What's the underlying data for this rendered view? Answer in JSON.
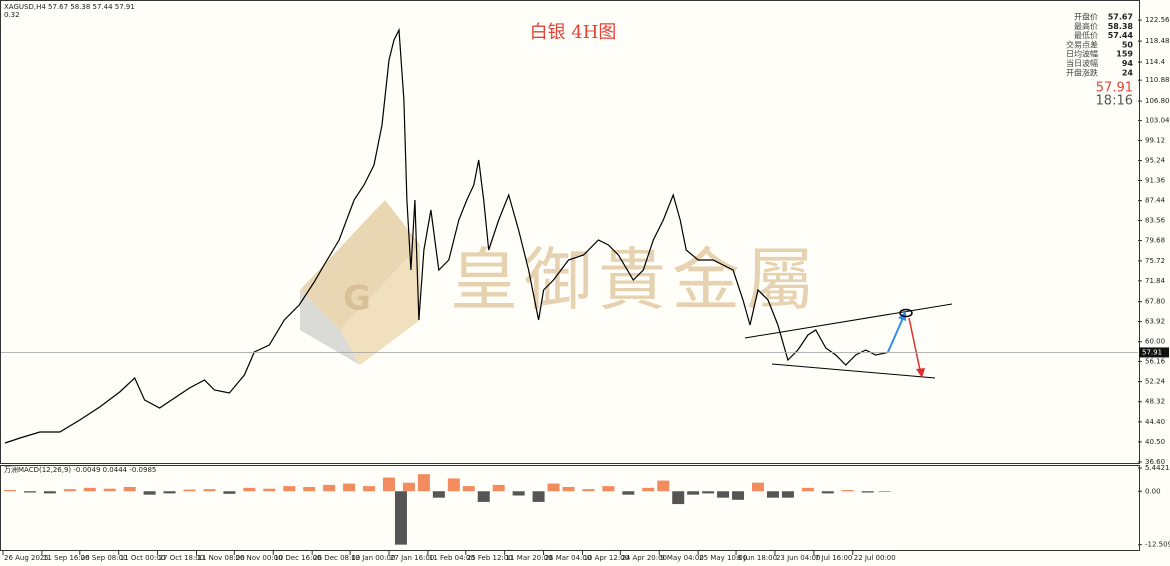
{
  "header": "XAGUSD,H4  57.67 58.38 57.44 57.91",
  "subheader": "0.32",
  "title": "白银 4H图",
  "watermark": "皇御貴金屬",
  "logo_letter": "G",
  "info_panel": {
    "rows": [
      {
        "label": "开盘价",
        "value": 57.67
      },
      {
        "label": "最高价",
        "value": 58.38
      },
      {
        "label": "最低价",
        "value": 57.44
      },
      {
        "label": "交易点差",
        "value": 50
      },
      {
        "label": "日均波幅",
        "value": 159
      },
      {
        "label": "当日波幅",
        "value": 94
      },
      {
        "label": "开盘涨跌",
        "value": 24
      }
    ],
    "price": 57.91,
    "time": "18:16"
  },
  "chart_data": [
    {
      "type": "line",
      "x": [
        2,
        17,
        37,
        57,
        77,
        97,
        117,
        132,
        142,
        157,
        172,
        187,
        202,
        212,
        227,
        242,
        252,
        267,
        282,
        297,
        312,
        322,
        337,
        352,
        362,
        372,
        380,
        387,
        392,
        397,
        402,
        405,
        409,
        413,
        417,
        422,
        429,
        437,
        447,
        457,
        465,
        472,
        477,
        482,
        487,
        497,
        507,
        517,
        527,
        537,
        542,
        552,
        567,
        582,
        597,
        607,
        617,
        632,
        642,
        652,
        662,
        672,
        679,
        685,
        697,
        712,
        722,
        732,
        742,
        749,
        757,
        767,
        777,
        787,
        797,
        807,
        815,
        825,
        835,
        845,
        855,
        865,
        875,
        887
      ],
      "series": [
        {
          "color": "#000000",
          "values": [
            40.29,
            41.26,
            42.43,
            42.43,
            44.77,
            47.29,
            50.21,
            52.94,
            48.66,
            47.1,
            49.05,
            50.99,
            52.55,
            50.6,
            50.02,
            53.52,
            57.99,
            59.36,
            64.22,
            67.14,
            71.61,
            74.92,
            79.78,
            87.56,
            90.48,
            94.37,
            102.16,
            114.8,
            118.69,
            120.64,
            107.02,
            87.56,
            73.95,
            87.56,
            64.22,
            77.84,
            85.62,
            73.95,
            75.89,
            83.67,
            87.56,
            90.48,
            95.35,
            87.56,
            77.84,
            83.67,
            88.54,
            81.73,
            73.95,
            64.22,
            70.06,
            72,
            75.89,
            76.86,
            79.78,
            78.81,
            76.86,
            72,
            73.95,
            79.78,
            83.67,
            88.54,
            83.67,
            77.84,
            75.89,
            75.89,
            74.92,
            73.95,
            68.11,
            63.25,
            70.06,
            68.11,
            63.25,
            56.44,
            58.38,
            61.3,
            62.27,
            58.77,
            57.41,
            55.47,
            57.41,
            58.38,
            57.41,
            57.91
          ]
        }
      ],
      "current_price": 57.91,
      "xlim": [
        0,
        1135
      ],
      "xticks": [
        {
          "value": 0,
          "label": "26 Aug 2025"
        },
        {
          "value": 39,
          "label": "11 Sep 16:00"
        },
        {
          "value": 77,
          "label": "26 Sep 08:00"
        },
        {
          "value": 116,
          "label": "11 Oct 00:00"
        },
        {
          "value": 155,
          "label": "27 Oct 18:00"
        },
        {
          "value": 194,
          "label": "11 Nov 08:00"
        },
        {
          "value": 232,
          "label": "26 Nov 00:00"
        },
        {
          "value": 271,
          "label": "10 Dec 16:00"
        },
        {
          "value": 310,
          "label": "26 Dec 08:00"
        },
        {
          "value": 348,
          "label": "13 Jan 00:00"
        },
        {
          "value": 387,
          "label": "27 Jan 16:00"
        },
        {
          "value": 426,
          "label": "11 Feb 04:00"
        },
        {
          "value": 464,
          "label": "25 Feb 12:00"
        },
        {
          "value": 503,
          "label": "11 Mar 20:00"
        },
        {
          "value": 542,
          "label": "26 Mar 04:00"
        },
        {
          "value": 581,
          "label": "10 Apr 12:00"
        },
        {
          "value": 619,
          "label": "24 Apr 20:00"
        },
        {
          "value": 658,
          "label": "9 May 04:00"
        },
        {
          "value": 697,
          "label": "25 May 10:00"
        },
        {
          "value": 735,
          "label": "8 Jun 18:00"
        },
        {
          "value": 774,
          "label": "23 Jun 04:00"
        },
        {
          "value": 813,
          "label": "7 Jul 16:00"
        },
        {
          "value": 852,
          "label": "22 Jul 00:00"
        }
      ],
      "ylim": [
        36.4,
        125.5
      ],
      "yticks": [
        122.56,
        118.48,
        114.4,
        110.88,
        {
          "value": 106.8,
          "label": "106.80"
        },
        103.04,
        99.12,
        95.24,
        91.36,
        87.44,
        83.56,
        79.68,
        75.72,
        71.84,
        {
          "value": 67.8,
          "label": "67.80"
        },
        63.92,
        {
          "value": 60,
          "label": "60.00"
        },
        56.16,
        52.24,
        48.32,
        {
          "value": 44.4,
          "label": "44.40"
        },
        {
          "value": 40.5,
          "label": "40.50"
        },
        {
          "value": 36.6,
          "label": "36.60"
        }
      ]
    },
    {
      "type": "bar",
      "title": "万洲MACD(12,26,9) -0.0049 0.0444 -0.0985",
      "x": [
        7,
        27,
        47,
        67,
        87,
        107,
        127,
        147,
        167,
        187,
        207,
        227,
        247,
        267,
        287,
        307,
        327,
        347,
        367,
        387,
        399,
        407,
        422,
        437,
        452,
        467,
        482,
        497,
        517,
        537,
        552,
        567,
        587,
        607,
        627,
        647,
        662,
        677,
        692,
        707,
        722,
        737,
        757,
        772,
        787,
        807,
        827,
        847,
        867,
        884
      ],
      "values": [
        0.3,
        -0.3,
        -0.5,
        0.5,
        0.8,
        0.6,
        1,
        -0.8,
        -0.5,
        0.4,
        0.5,
        -0.6,
        0.8,
        0.6,
        1.2,
        1,
        1.5,
        1.8,
        1.2,
        3.2,
        -12.5,
        2,
        4,
        -1.5,
        3,
        1.2,
        -2.5,
        1.5,
        -1,
        -2.5,
        1.8,
        1,
        0.5,
        1.2,
        -0.8,
        0.8,
        2.5,
        -3,
        -0.8,
        -0.5,
        -1.5,
        -2,
        2,
        -1.5,
        -1.5,
        0.8,
        -0.5,
        0.3,
        -0.3,
        -0.1
      ],
      "colors": {
        "positive": "#f28c5e",
        "negative": "#555555"
      },
      "xlim": [
        0,
        1135
      ],
      "ylim": [
        -13.75,
        5.91
      ],
      "yticks": [
        5.4421,
        {
          "value": 0,
          "label": "0.00"
        },
        -12.5098
      ]
    }
  ]
}
